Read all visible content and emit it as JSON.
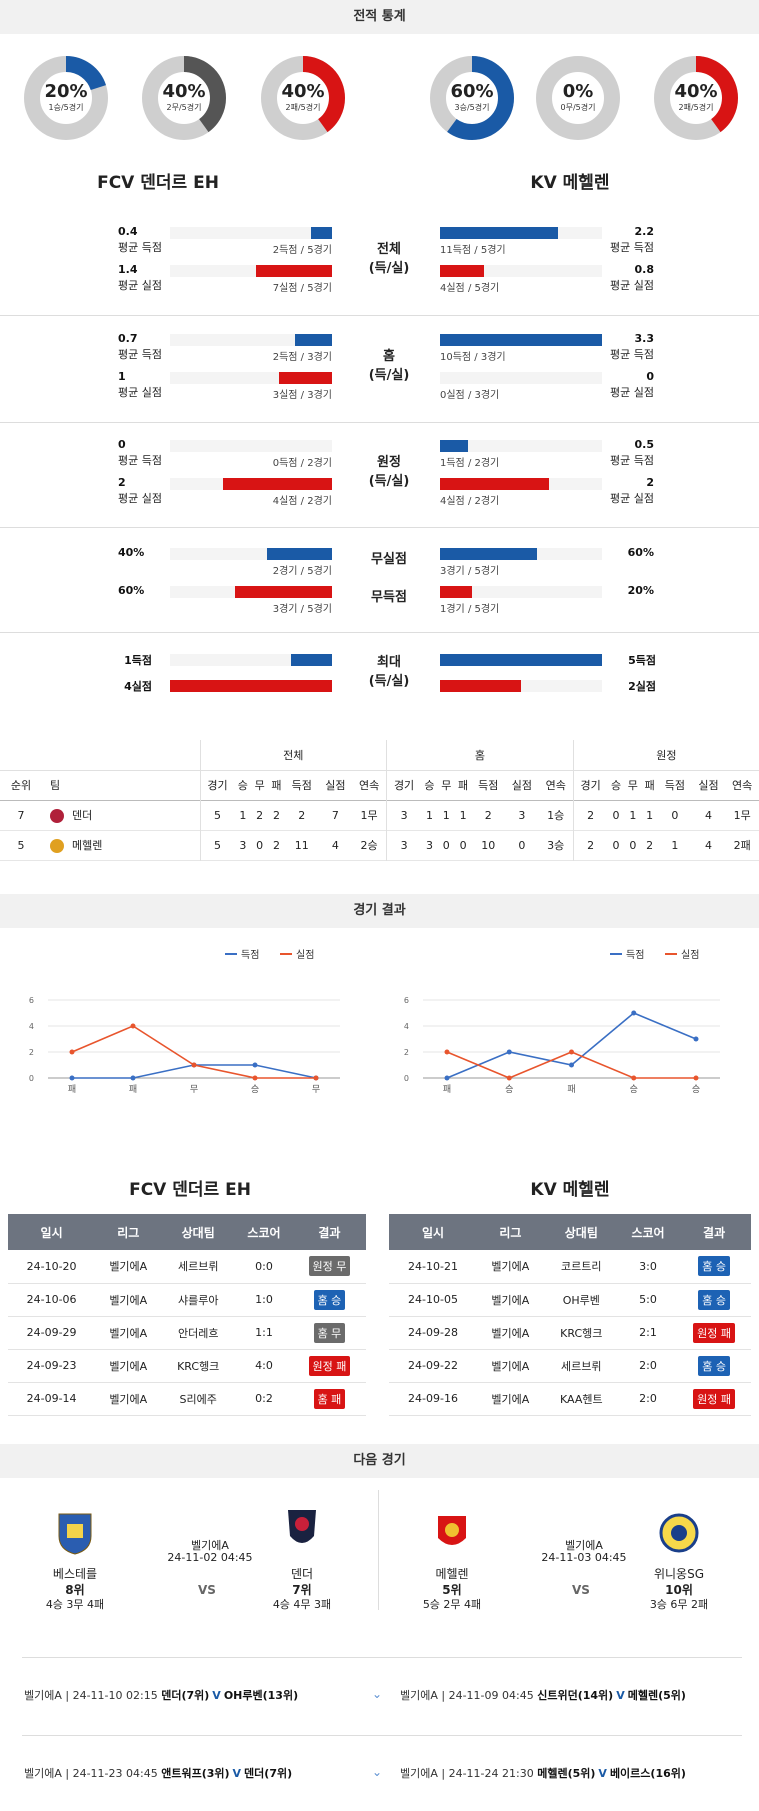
{
  "sections": {
    "stats_title": "전적 통계",
    "results_title": "경기 결과",
    "next_title": "다음 경기"
  },
  "donuts": [
    {
      "pct": "20%",
      "sub": "1승/5경기",
      "value": 0.2,
      "color": "#1a5aa6"
    },
    {
      "pct": "40%",
      "sub": "2무/5경기",
      "value": 0.4,
      "color": "#555555"
    },
    {
      "pct": "40%",
      "sub": "2패/5경기",
      "value": 0.4,
      "color": "#d81414"
    },
    {
      "pct": "60%",
      "sub": "3승/5경기",
      "value": 0.6,
      "color": "#1a5aa6"
    },
    {
      "pct": "0%",
      "sub": "0무/5경기",
      "value": 0.0,
      "color": "#555555"
    },
    {
      "pct": "40%",
      "sub": "2패/5경기",
      "value": 0.4,
      "color": "#d81414"
    }
  ],
  "teams": {
    "home": "FCV 덴더르 EH",
    "away": "KV 메헬렌"
  },
  "stat_groups": [
    {
      "label": "전체\n(득/실)",
      "rows": [
        {
          "l_val": "0.4",
          "l_lbl": "평균 득점",
          "l_sub": "2득점 / 5경기",
          "l_frac": 0.13,
          "l_color": "blue",
          "r_val": "2.2",
          "r_lbl": "평균 득점",
          "r_sub": "11득점 / 5경기",
          "r_frac": 0.73,
          "r_color": "blue"
        },
        {
          "l_val": "1.4",
          "l_lbl": "평균 실점",
          "l_sub": "7실점 / 5경기",
          "l_frac": 0.47,
          "l_color": "red",
          "r_val": "0.8",
          "r_lbl": "평균 실점",
          "r_sub": "4실점 / 5경기",
          "r_frac": 0.27,
          "r_color": "red"
        }
      ]
    },
    {
      "label": "홈\n(득/실)",
      "rows": [
        {
          "l_val": "0.7",
          "l_lbl": "평균 득점",
          "l_sub": "2득점 / 3경기",
          "l_frac": 0.23,
          "l_color": "blue",
          "r_val": "3.3",
          "r_lbl": "평균 득점",
          "r_sub": "10득점 / 3경기",
          "r_frac": 1.0,
          "r_color": "blue"
        },
        {
          "l_val": "1",
          "l_lbl": "평균 실점",
          "l_sub": "3실점 / 3경기",
          "l_frac": 0.33,
          "l_color": "red",
          "r_val": "0",
          "r_lbl": "평균 실점",
          "r_sub": "0실점 / 3경기",
          "r_frac": 0.0,
          "r_color": "red"
        }
      ]
    },
    {
      "label": "원정\n(득/실)",
      "rows": [
        {
          "l_val": "0",
          "l_lbl": "평균 득점",
          "l_sub": "0득점 / 2경기",
          "l_frac": 0.0,
          "l_color": "blue",
          "r_val": "0.5",
          "r_lbl": "평균 득점",
          "r_sub": "1득점 / 2경기",
          "r_frac": 0.17,
          "r_color": "blue"
        },
        {
          "l_val": "2",
          "l_lbl": "평균 실점",
          "l_sub": "4실점 / 2경기",
          "l_frac": 0.67,
          "l_color": "red",
          "r_val": "2",
          "r_lbl": "평균 실점",
          "r_sub": "4실점 / 2경기",
          "r_frac": 0.67,
          "r_color": "red"
        }
      ]
    }
  ],
  "clean": {
    "rows": [
      {
        "mid": "무실점",
        "l_val": "40%",
        "l_sub": "2경기 / 5경기",
        "l_frac": 0.4,
        "l_color": "blue",
        "r_val": "60%",
        "r_sub": "3경기 / 5경기",
        "r_frac": 0.6,
        "r_color": "blue"
      },
      {
        "mid": "무득점",
        "l_val": "60%",
        "l_sub": "3경기 / 5경기",
        "l_frac": 0.6,
        "l_color": "red",
        "r_val": "20%",
        "r_sub": "1경기 / 5경기",
        "r_frac": 0.2,
        "r_color": "red"
      }
    ]
  },
  "max": {
    "label": "최대\n(득/실)",
    "rows": [
      {
        "l_val": "1득점",
        "l_frac": 0.25,
        "l_color": "blue",
        "r_val": "5득점",
        "r_frac": 1.0,
        "r_color": "blue"
      },
      {
        "l_val": "4실점",
        "l_frac": 1.0,
        "l_color": "red",
        "r_val": "2실점",
        "r_frac": 0.5,
        "r_color": "red"
      }
    ]
  },
  "ranking": {
    "groups": [
      "전체",
      "홈",
      "원정"
    ],
    "headers": [
      "순위",
      "팀"
    ],
    "sub_headers": [
      "경기",
      "승",
      "무",
      "패",
      "득점",
      "실점",
      "연속"
    ],
    "rows": [
      {
        "rank": "7",
        "team": "덴더",
        "crest": "#b0203a",
        "total": [
          "5",
          "1",
          "2",
          "2",
          "2",
          "7",
          "1무"
        ],
        "home": [
          "3",
          "1",
          "1",
          "1",
          "2",
          "3",
          "1승"
        ],
        "away": [
          "2",
          "0",
          "1",
          "1",
          "0",
          "4",
          "1무"
        ]
      },
      {
        "rank": "5",
        "team": "메헬렌",
        "crest": "#e0a020",
        "total": [
          "5",
          "3",
          "0",
          "2",
          "11",
          "4",
          "2승"
        ],
        "home": [
          "3",
          "3",
          "0",
          "0",
          "10",
          "0",
          "3승"
        ],
        "away": [
          "2",
          "0",
          "0",
          "2",
          "1",
          "4",
          "2패"
        ]
      }
    ]
  },
  "chart_data": [
    {
      "type": "line",
      "categories": [
        "패",
        "패",
        "무",
        "승",
        "무"
      ],
      "series": [
        {
          "name": "득점",
          "values": [
            0,
            0,
            1,
            1,
            0
          ],
          "color": "#3a6fc4"
        },
        {
          "name": "실점",
          "values": [
            2,
            4,
            1,
            0,
            0
          ],
          "color": "#e8552d"
        }
      ],
      "yticks": [
        "0",
        "2",
        "4",
        "6"
      ],
      "ylim": [
        0,
        6
      ]
    },
    {
      "type": "line",
      "categories": [
        "패",
        "승",
        "패",
        "승",
        "승"
      ],
      "series": [
        {
          "name": "득점",
          "values": [
            0,
            2,
            1,
            5,
            3
          ],
          "color": "#3a6fc4"
        },
        {
          "name": "실점",
          "values": [
            2,
            0,
            2,
            0,
            0
          ],
          "color": "#e8552d"
        }
      ],
      "yticks": [
        "0",
        "2",
        "4",
        "6"
      ],
      "ylim": [
        0,
        6
      ]
    }
  ],
  "results": {
    "headers": [
      "일시",
      "리그",
      "상대팀",
      "스코어",
      "결과"
    ],
    "home": [
      {
        "date": "24-10-20",
        "league": "벨기에A",
        "opp": "세르브뤼",
        "score": "0:0",
        "result": "원정 무",
        "rc": "gray"
      },
      {
        "date": "24-10-06",
        "league": "벨기에A",
        "opp": "샤를루아",
        "score": "1:0",
        "result": "홈 승",
        "rc": "blue"
      },
      {
        "date": "24-09-29",
        "league": "벨기에A",
        "opp": "안더레흐",
        "score": "1:1",
        "result": "홈 무",
        "rc": "gray"
      },
      {
        "date": "24-09-23",
        "league": "벨기에A",
        "opp": "KRC헹크",
        "score": "4:0",
        "result": "원정 패",
        "rc": "red"
      },
      {
        "date": "24-09-14",
        "league": "벨기에A",
        "opp": "S리에주",
        "score": "0:2",
        "result": "홈 패",
        "rc": "red"
      }
    ],
    "away": [
      {
        "date": "24-10-21",
        "league": "벨기에A",
        "opp": "코르트리",
        "score": "3:0",
        "result": "홈 승",
        "rc": "blue"
      },
      {
        "date": "24-10-05",
        "league": "벨기에A",
        "opp": "OH루벤",
        "score": "5:0",
        "result": "홈 승",
        "rc": "blue"
      },
      {
        "date": "24-09-28",
        "league": "벨기에A",
        "opp": "KRC헹크",
        "score": "2:1",
        "result": "원정 패",
        "rc": "red"
      },
      {
        "date": "24-09-22",
        "league": "벨기에A",
        "opp": "세르브뤼",
        "score": "2:0",
        "result": "홈 승",
        "rc": "blue"
      },
      {
        "date": "24-09-16",
        "league": "벨기에A",
        "opp": "KAA헨트",
        "score": "2:0",
        "result": "원정 패",
        "rc": "red"
      }
    ]
  },
  "next": {
    "left": {
      "t1": {
        "name": "베스테를",
        "rank": "8위",
        "rec": "4승 3무 4패"
      },
      "t2": {
        "name": "덴더",
        "rank": "7위",
        "rec": "4승 4무 3패"
      },
      "league": "벨기에A",
      "date": "24-11-02 04:45",
      "vs": "VS"
    },
    "right": {
      "t1": {
        "name": "메헬렌",
        "rank": "5위",
        "rec": "5승 2무 4패"
      },
      "t2": {
        "name": "위니옹SG",
        "rank": "10위",
        "rec": "3승 6무 2패"
      },
      "league": "벨기에A",
      "date": "24-11-03 04:45",
      "vs": "VS"
    },
    "fixtures": [
      {
        "left_meta": "벨기에A | 24-11-10 02:15",
        "left_teams": "덴더(7위)",
        "left_v": "V",
        "left_opp": "OH루벤(13위)",
        "right_meta": "벨기에A | 24-11-09 04:45",
        "right_teams": "신트위던(14위)",
        "right_v": "V",
        "right_opp": "메헬렌(5위)"
      },
      {
        "left_meta": "벨기에A | 24-11-23 04:45",
        "left_teams": "앤트워프(3위)",
        "left_v": "V",
        "left_opp": "덴더(7위)",
        "right_meta": "벨기에A | 24-11-24 21:30",
        "right_teams": "메헬렌(5위)",
        "right_v": "V",
        "right_opp": "베이르스(16위)"
      }
    ]
  }
}
